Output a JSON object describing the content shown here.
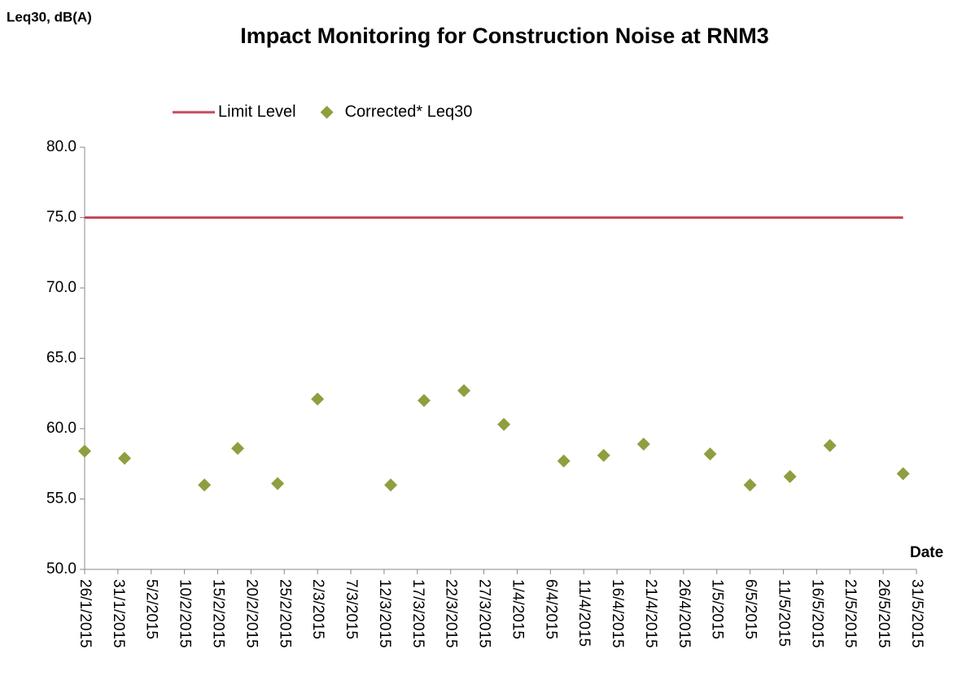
{
  "chart_data": {
    "type": "scatter",
    "title": "Impact Monitoring for Construction Noise at RNM3",
    "ylabel": "Leq30, dB(A)",
    "xlabel": "Date",
    "x": [
      "26/1/2015",
      "1/2/2015",
      "13/2/2015",
      "18/2/2015",
      "24/2/2015",
      "2/3/2015",
      "13/3/2015",
      "18/3/2015",
      "24/3/2015",
      "30/3/2015",
      "8/4/2015",
      "14/4/2015",
      "20/4/2015",
      "30/4/2015",
      "6/5/2015",
      "12/5/2015",
      "18/5/2015",
      "29/5/2015"
    ],
    "series": [
      {
        "name": "Limit Level",
        "color": "#c8475a",
        "style": "line",
        "values": [
          75,
          75,
          75,
          75,
          75,
          75,
          75,
          75,
          75,
          75,
          75,
          75,
          75,
          75,
          75,
          75,
          75,
          75
        ]
      },
      {
        "name": "Corrected* Leq30",
        "color": "#8f9e3f",
        "style": "marker",
        "values": [
          58.4,
          57.9,
          56.0,
          58.6,
          56.1,
          62.1,
          56.0,
          62.0,
          62.7,
          60.3,
          57.7,
          58.1,
          58.9,
          58.2,
          56.0,
          56.6,
          58.8,
          56.8
        ]
      }
    ],
    "xlim": [
      "26/1/2015",
      "31/5/2015"
    ],
    "xticks": [
      "26/1/2015",
      "31/1/2015",
      "5/2/2015",
      "10/2/2015",
      "15/2/2015",
      "20/2/2015",
      "25/2/2015",
      "2/3/2015",
      "7/3/2015",
      "12/3/2015",
      "17/3/2015",
      "22/3/2015",
      "27/3/2015",
      "1/4/2015",
      "6/4/2015",
      "11/4/2015",
      "16/4/2015",
      "21/4/2015",
      "26/4/2015",
      "1/5/2015",
      "6/5/2015",
      "11/5/2015",
      "16/5/2015",
      "21/5/2015",
      "26/5/2015",
      "31/5/2015"
    ],
    "ylim": [
      50,
      80
    ],
    "yticks": [
      {
        "value": 50,
        "label": "50.0"
      },
      {
        "value": 55,
        "label": "55.0"
      },
      {
        "value": 60,
        "label": "60.0"
      },
      {
        "value": 65,
        "label": "65.0"
      },
      {
        "value": 70,
        "label": "70.0"
      },
      {
        "value": 75,
        "label": "75.0"
      },
      {
        "value": 80,
        "label": "80.0"
      }
    ],
    "legend": "top"
  }
}
